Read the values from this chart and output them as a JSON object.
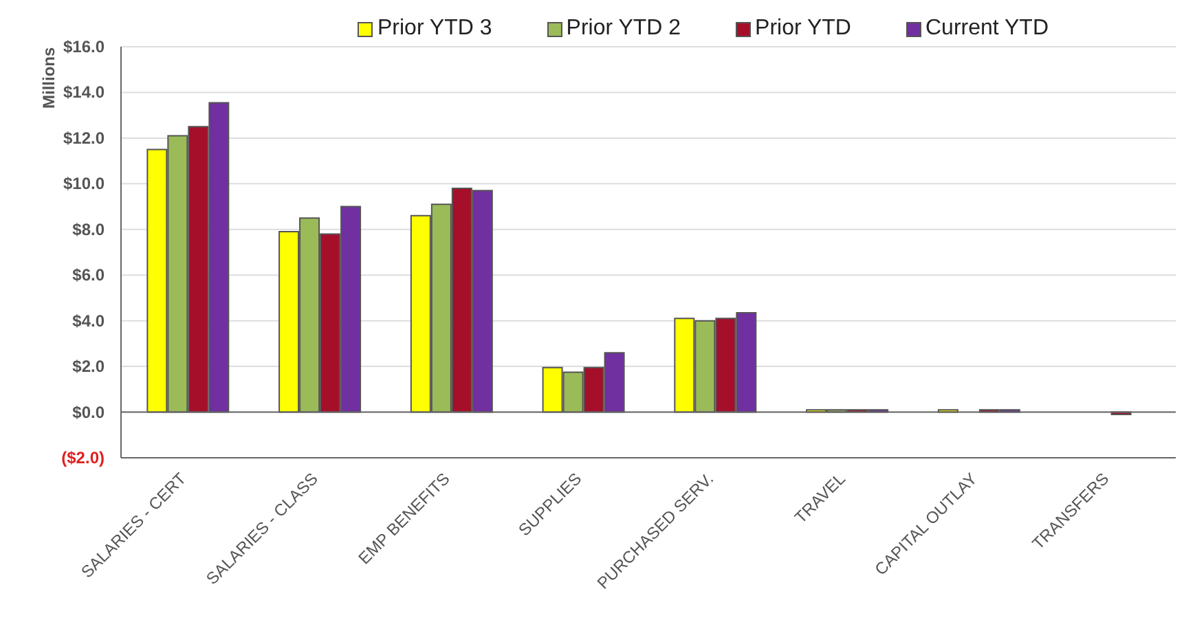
{
  "chart_data": {
    "type": "bar",
    "ylabel": "Millions",
    "categories": [
      "SALARIES - CERT",
      "SALARIES - CLASS",
      "EMP BENEFITS",
      "SUPPLIES",
      "PURCHASED SERV.",
      "TRAVEL",
      "CAPITAL OUTLAY",
      "TRANSFERS"
    ],
    "series": [
      {
        "name": "Prior YTD 3",
        "color": "#ffff00",
        "values": [
          11.5,
          7.9,
          8.6,
          1.95,
          4.1,
          0.1,
          0.1,
          0
        ]
      },
      {
        "name": "Prior YTD 2",
        "color": "#9bbb59",
        "values": [
          12.1,
          8.5,
          9.1,
          1.75,
          4.0,
          0.1,
          0,
          0
        ]
      },
      {
        "name": "Prior YTD",
        "color": "#a50f2a",
        "values": [
          12.5,
          7.8,
          9.8,
          1.95,
          4.1,
          0.1,
          0.1,
          -0.1
        ]
      },
      {
        "name": "Current YTD",
        "color": "#7030a0",
        "values": [
          13.55,
          9.0,
          9.7,
          2.6,
          4.35,
          0.1,
          0.1,
          0
        ]
      }
    ],
    "ylim": [
      -2,
      16
    ],
    "yticks": [
      {
        "value": -2,
        "label": "($2.0)"
      },
      {
        "value": 0,
        "label": "$0.0"
      },
      {
        "value": 2,
        "label": "$2.0"
      },
      {
        "value": 4,
        "label": "$4.0"
      },
      {
        "value": 6,
        "label": "$6.0"
      },
      {
        "value": 8,
        "label": "$8.0"
      },
      {
        "value": 10,
        "label": "$10.0"
      },
      {
        "value": 12,
        "label": "$12.0"
      },
      {
        "value": 14,
        "label": "$14.0"
      },
      {
        "value": 16,
        "label": "$16.0"
      }
    ],
    "grid": "y",
    "legend": "top"
  }
}
